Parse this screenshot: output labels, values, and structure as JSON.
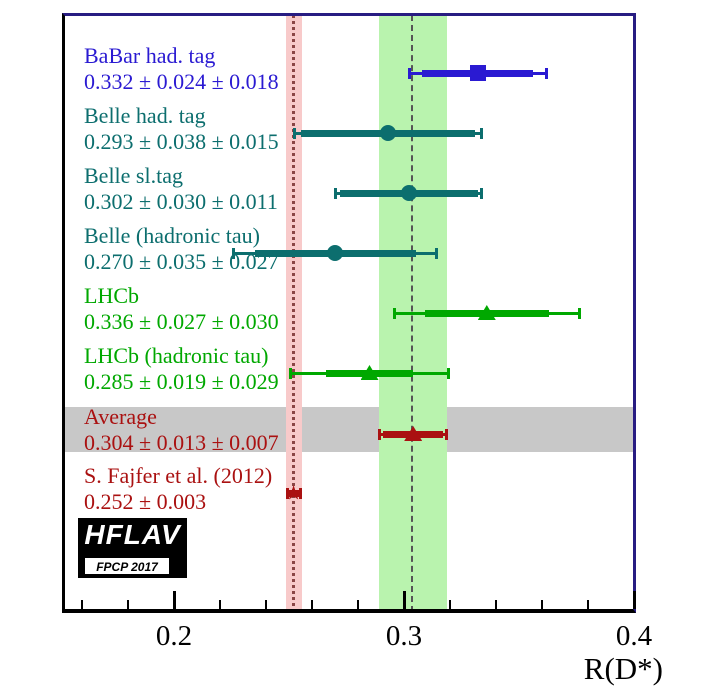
{
  "chart_data": {
    "type": "scatter",
    "title": "",
    "xlabel": "R(D*)",
    "xlim": [
      0.1515,
      0.4005
    ],
    "grid": false,
    "x_ticks": {
      "major": [
        0.2,
        0.3,
        0.4
      ],
      "major_labels": [
        "0.2",
        "0.3",
        "0.4"
      ],
      "minor": [
        0.16,
        0.18,
        0.22,
        0.24,
        0.26,
        0.28,
        0.32,
        0.34,
        0.36,
        0.38
      ]
    },
    "measurements": [
      {
        "label": "BaBar had. tag",
        "value_text": "0.332 ± 0.024 ± 0.018",
        "value": 0.332,
        "stat": 0.024,
        "syst": 0.018,
        "color": "#2a1ad2",
        "marker": "square"
      },
      {
        "label": "Belle had. tag",
        "value_text": "0.293 ± 0.038 ± 0.015",
        "value": 0.293,
        "stat": 0.038,
        "syst": 0.015,
        "color": "#0c6e6e",
        "marker": "circle"
      },
      {
        "label": "Belle sl.tag",
        "value_text": "0.302 ± 0.030 ± 0.011",
        "value": 0.302,
        "stat": 0.03,
        "syst": 0.011,
        "color": "#0c6e6e",
        "marker": "circle"
      },
      {
        "label": "Belle (hadronic tau)",
        "value_text": "0.270 ± 0.035 ± 0.027",
        "value": 0.27,
        "stat": 0.035,
        "syst": 0.027,
        "color": "#0c6e6e",
        "marker": "circle"
      },
      {
        "label": "LHCb",
        "value_text": "0.336 ± 0.027 ± 0.030",
        "value": 0.336,
        "stat": 0.027,
        "syst": 0.03,
        "color": "#00a800",
        "marker": "triangle"
      },
      {
        "label": "LHCb (hadronic tau)",
        "value_text": "0.285 ± 0.019 ± 0.029",
        "value": 0.285,
        "stat": 0.019,
        "syst": 0.029,
        "color": "#00a800",
        "marker": "triangle"
      },
      {
        "label": "Average",
        "value_text": "0.304 ± 0.013 ± 0.007",
        "value": 0.304,
        "stat": 0.013,
        "syst": 0.007,
        "color": "#aa1111",
        "marker": "triangle",
        "row_highlight": true
      },
      {
        "label": "S. Fajfer et al. (2012)",
        "value_text": "0.252 ± 0.003",
        "value": 0.252,
        "stat": 0.003,
        "syst": 0,
        "color": "#aa1111",
        "marker": "star"
      }
    ],
    "bands": [
      {
        "name": "average-1sigma-band",
        "center": 0.304,
        "half_width": 0.0148,
        "fill": "#b9f3ae",
        "line_style": "dashed",
        "line_color": "#555555"
      },
      {
        "name": "theory-prediction-band",
        "center": 0.252,
        "half_width": 0.0035,
        "fill": "#f8caca",
        "line_style": "dotted",
        "line_color": "#8a4444"
      },
      {
        "name": "average-row-highlight",
        "orientation": "horizontal",
        "row": "Average",
        "fill": "#c8c8c8"
      }
    ],
    "frame_colors": {
      "top_right": "#281c82",
      "bottom_left": "#000000"
    },
    "logo": {
      "line1": "HFLAV",
      "line2": "FPCP 2017"
    }
  }
}
